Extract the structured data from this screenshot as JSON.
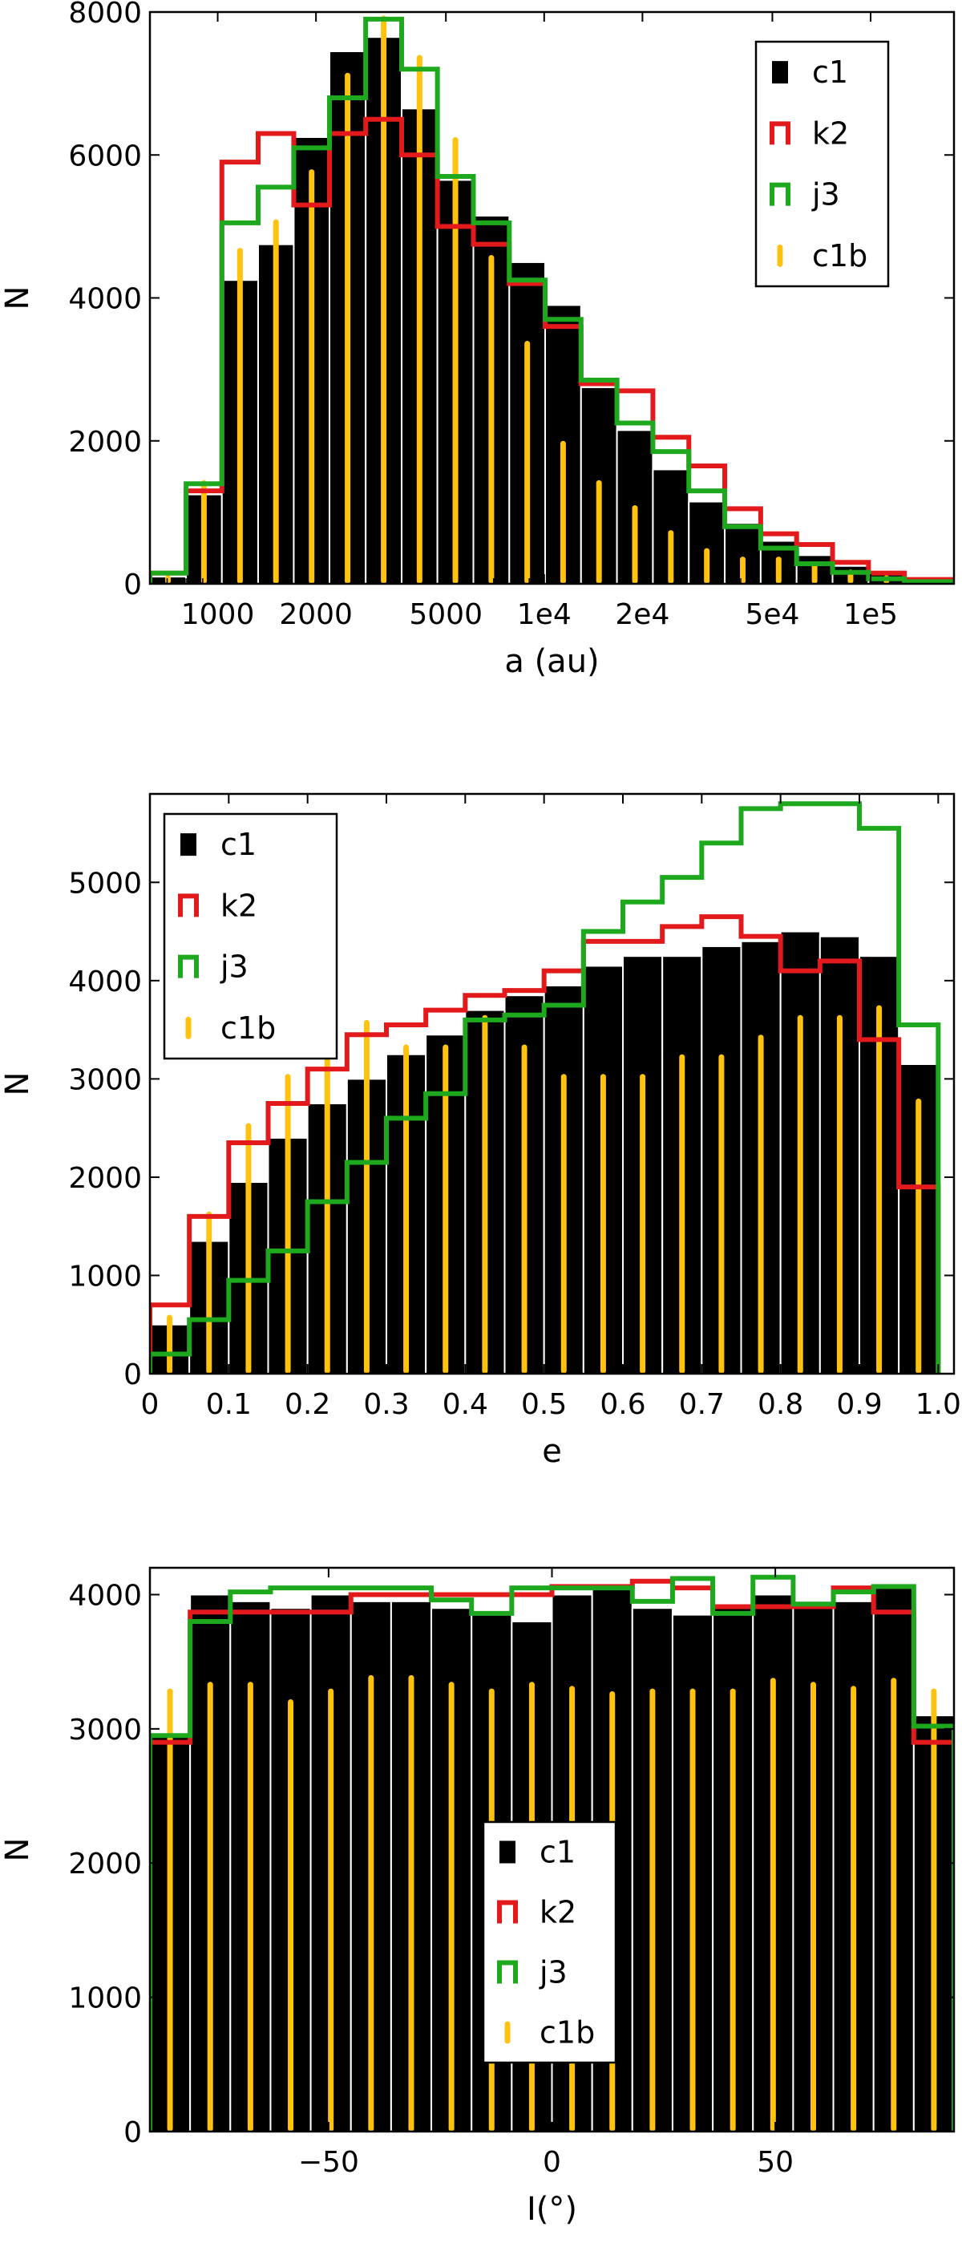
{
  "colors": {
    "c1": "#000000",
    "k2": "#e31a1c",
    "j3": "#1ea81e",
    "c1b": "#ffc20e"
  },
  "legend_labels": [
    "c1",
    "k2",
    "j3",
    "c1b"
  ],
  "chart_data": [
    {
      "type": "bar",
      "xlabel": "a (au)",
      "ylabel": "N",
      "xscale": "log",
      "xlim": [
        620,
        180000
      ],
      "ylim": [
        0,
        8000
      ],
      "xticks": [
        1000,
        2000,
        5000,
        10000,
        20000,
        50000,
        100000
      ],
      "xtick_labels": [
        "1000",
        "2000",
        "5000",
        "1e4",
        "2e4",
        "5e4",
        "1e5"
      ],
      "yticks": [
        0,
        2000,
        4000,
        6000,
        8000
      ],
      "ytick_labels": [
        "0",
        "2000",
        "4000",
        "6000",
        "8000"
      ],
      "legend": "top-right",
      "bin_edges": [
        620,
        800,
        1030,
        1330,
        1710,
        2200,
        2840,
        3660,
        4710,
        6070,
        7820,
        10070,
        12970,
        16710,
        21530,
        27740,
        35740,
        46050,
        59330,
        76440,
        98490,
        126900,
        180000
      ],
      "series": [
        {
          "name": "c1",
          "style": "bar",
          "values": [
            100,
            1250,
            4250,
            4750,
            6250,
            7450,
            7650,
            6650,
            5650,
            5150,
            4500,
            3900,
            2750,
            2150,
            1600,
            1150,
            850,
            600,
            400,
            250,
            130,
            60
          ]
        },
        {
          "name": "k2",
          "style": "step",
          "values": [
            150,
            1300,
            5900,
            6300,
            5300,
            6300,
            6500,
            6000,
            5000,
            4750,
            4200,
            3600,
            2800,
            2700,
            2050,
            1650,
            1050,
            700,
            550,
            300,
            150,
            60
          ]
        },
        {
          "name": "j3",
          "style": "step",
          "values": [
            150,
            1400,
            5050,
            5550,
            6100,
            6800,
            7900,
            7200,
            5700,
            5050,
            4250,
            3700,
            2850,
            2250,
            1850,
            1300,
            800,
            500,
            280,
            160,
            70,
            30
          ]
        },
        {
          "name": "c1b",
          "style": "thin-bar",
          "values": [
            120,
            1450,
            4700,
            5100,
            5800,
            7150,
            7950,
            7400,
            6250,
            4600,
            3400,
            2000,
            1450,
            1100,
            750,
            500,
            380,
            380,
            280,
            200,
            120,
            60
          ]
        }
      ]
    },
    {
      "type": "bar",
      "xlabel": "e",
      "ylabel": "N",
      "xlim": [
        0,
        1.02
      ],
      "ylim": [
        0,
        5900
      ],
      "xticks": [
        0,
        0.1,
        0.2,
        0.3,
        0.4,
        0.5,
        0.6,
        0.7,
        0.8,
        0.9,
        1.0
      ],
      "xtick_labels": [
        "0",
        "0.1",
        "0.2",
        "0.3",
        "0.4",
        "0.5",
        "0.6",
        "0.7",
        "0.8",
        "0.9",
        "1.0"
      ],
      "yticks": [
        0,
        1000,
        2000,
        3000,
        4000,
        5000
      ],
      "ytick_labels": [
        "0",
        "1000",
        "2000",
        "3000",
        "4000",
        "5000"
      ],
      "legend": "top-left",
      "bin_edges": [
        0,
        0.05,
        0.1,
        0.15,
        0.2,
        0.25,
        0.3,
        0.35,
        0.4,
        0.45,
        0.5,
        0.55,
        0.6,
        0.65,
        0.7,
        0.75,
        0.8,
        0.85,
        0.9,
        0.95,
        1.0
      ],
      "series": [
        {
          "name": "c1",
          "style": "bar",
          "values": [
            500,
            1350,
            1950,
            2400,
            2750,
            3000,
            3250,
            3450,
            3700,
            3850,
            3950,
            4150,
            4250,
            4250,
            4350,
            4400,
            4500,
            4450,
            4250,
            3150
          ]
        },
        {
          "name": "k2",
          "style": "step",
          "values": [
            700,
            1600,
            2350,
            2750,
            3100,
            3450,
            3550,
            3700,
            3850,
            3900,
            4100,
            4400,
            4400,
            4550,
            4650,
            4450,
            4100,
            4200,
            3400,
            1900
          ]
        },
        {
          "name": "j3",
          "style": "step",
          "values": [
            200,
            550,
            950,
            1250,
            1750,
            2150,
            2600,
            2850,
            3600,
            3650,
            3750,
            4500,
            4800,
            5050,
            5400,
            5750,
            5800,
            5800,
            5550,
            3550
          ]
        },
        {
          "name": "c1b",
          "style": "thin-bar",
          "values": [
            600,
            1650,
            2550,
            3050,
            3400,
            3600,
            3350,
            3350,
            3650,
            3350,
            3050,
            3050,
            3050,
            3250,
            3250,
            3450,
            3650,
            3650,
            3750,
            2800
          ]
        }
      ]
    },
    {
      "type": "bar",
      "xlabel": "I(°)",
      "ylabel": "N",
      "xlim": [
        -90,
        90
      ],
      "ylim": [
        0,
        4200
      ],
      "xticks": [
        -50,
        0,
        50
      ],
      "xtick_labels": [
        "−50",
        "0",
        "50"
      ],
      "yticks": [
        0,
        1000,
        2000,
        3000,
        4000
      ],
      "ytick_labels": [
        "0",
        "1000",
        "2000",
        "3000",
        "4000"
      ],
      "legend": "lower-center",
      "bin_edges": [
        -90,
        -81,
        -72,
        -63,
        -54,
        -45,
        -36,
        -27,
        -18,
        -9,
        0,
        9,
        18,
        27,
        36,
        45,
        54,
        63,
        72,
        81,
        90
      ],
      "series": [
        {
          "name": "c1",
          "style": "bar",
          "values": [
            2950,
            4000,
            3950,
            3900,
            4000,
            3950,
            3950,
            3900,
            3850,
            3800,
            4000,
            4050,
            3900,
            3850,
            3900,
            4000,
            3950,
            3950,
            4050,
            3100
          ]
        },
        {
          "name": "k2",
          "style": "step",
          "values": [
            2900,
            3870,
            3870,
            3870,
            3870,
            4000,
            4000,
            4000,
            4000,
            4000,
            4060,
            4060,
            4100,
            4050,
            3910,
            3910,
            3910,
            4050,
            3870,
            2900
          ]
        },
        {
          "name": "j3",
          "style": "step",
          "values": [
            2950,
            3800,
            4020,
            4050,
            4050,
            4050,
            4050,
            3960,
            3860,
            4050,
            4050,
            4050,
            3950,
            4120,
            3860,
            4130,
            3930,
            4020,
            4060,
            3020
          ]
        },
        {
          "name": "c1b",
          "style": "thin-bar",
          "values": [
            3300,
            3350,
            3350,
            3220,
            3300,
            3400,
            3400,
            3350,
            3300,
            3350,
            3320,
            3280,
            3300,
            3300,
            3300,
            3380,
            3350,
            3320,
            3380,
            3300
          ]
        }
      ]
    }
  ]
}
